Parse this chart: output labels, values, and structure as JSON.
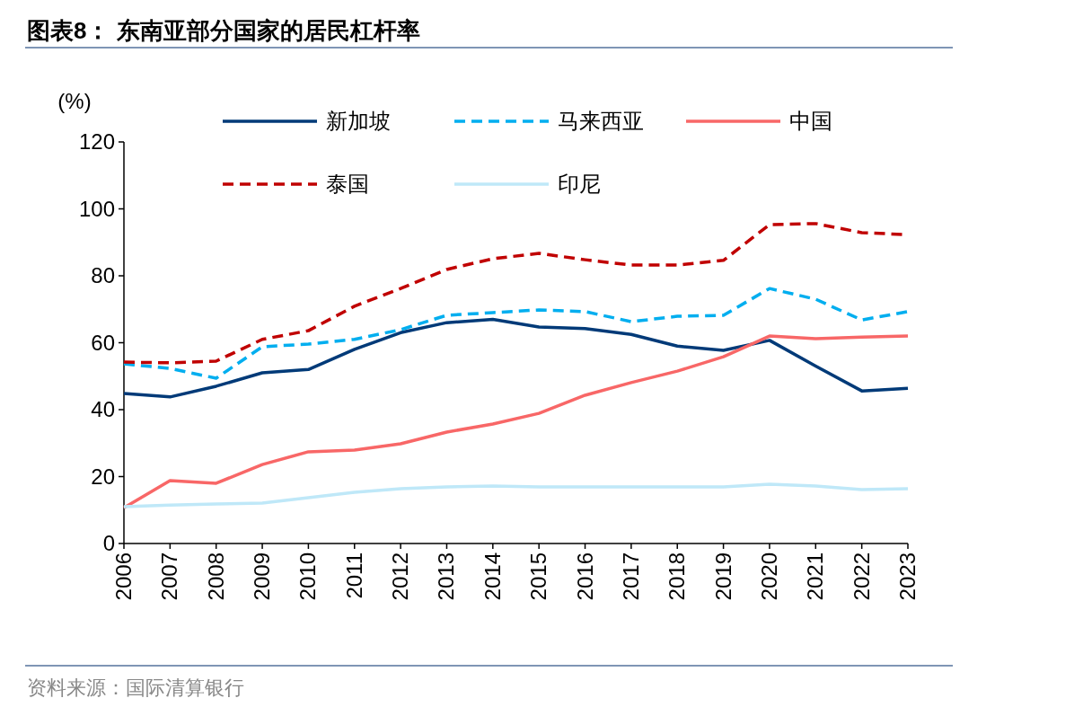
{
  "chart_data": {
    "type": "line",
    "title": "图表8：  东南亚部分国家的居民杠杆率",
    "ylabel": "(%)",
    "annotations": [
      "资料来源：国际清算银行"
    ],
    "categories": [
      "2006",
      "2007",
      "2008",
      "2009",
      "2010",
      "2011",
      "2012",
      "2013",
      "2014",
      "2015",
      "2016",
      "2017",
      "2018",
      "2019",
      "2020",
      "2021",
      "2022",
      "2023"
    ],
    "ylim": [
      0,
      120
    ],
    "yticks": [
      0,
      20,
      40,
      60,
      80,
      100,
      120
    ],
    "grid": false,
    "legend": "top",
    "marker": "none",
    "series": [
      {
        "name": "新加坡",
        "color": "#003a78",
        "line_style": "solid",
        "values": [
          44.8,
          43.8,
          47,
          51,
          52,
          58,
          63,
          66,
          67,
          64.7,
          64.2,
          62.5,
          59,
          57.7,
          60.7,
          53,
          45.6,
          46.4
        ]
      },
      {
        "name": "马来西亚",
        "color": "#00aeef",
        "line_style": "dashed",
        "values": [
          53.7,
          52.3,
          49.4,
          58.8,
          59.6,
          61,
          63.9,
          68.2,
          69,
          69.8,
          69.3,
          66.3,
          67.9,
          68.2,
          76.2,
          73,
          66.8,
          69.3
        ]
      },
      {
        "name": "中国",
        "color": "#f86767",
        "line_style": "solid",
        "values": [
          10.7,
          18.8,
          18,
          23.6,
          27.4,
          27.9,
          29.8,
          33.3,
          35.7,
          38.9,
          44.3,
          48.1,
          51.5,
          55.8,
          62,
          61.2,
          61.7,
          62
        ]
      },
      {
        "name": "泰国",
        "color": "#c00000",
        "line_style": "dashed",
        "values": [
          54.2,
          54,
          54.5,
          61,
          63.6,
          70.9,
          76.2,
          81.9,
          85.1,
          86.7,
          84.8,
          83.2,
          83.2,
          84.6,
          95.3,
          95.6,
          92.9,
          92.3
        ]
      },
      {
        "name": "印尼",
        "color": "#bfe8f8",
        "line_style": "solid",
        "values": [
          11,
          11.5,
          11.8,
          12.1,
          13.7,
          15.3,
          16.4,
          16.9,
          17.2,
          16.9,
          16.9,
          16.9,
          16.9,
          16.9,
          17.7,
          17.2,
          16.1,
          16.4
        ]
      }
    ]
  }
}
